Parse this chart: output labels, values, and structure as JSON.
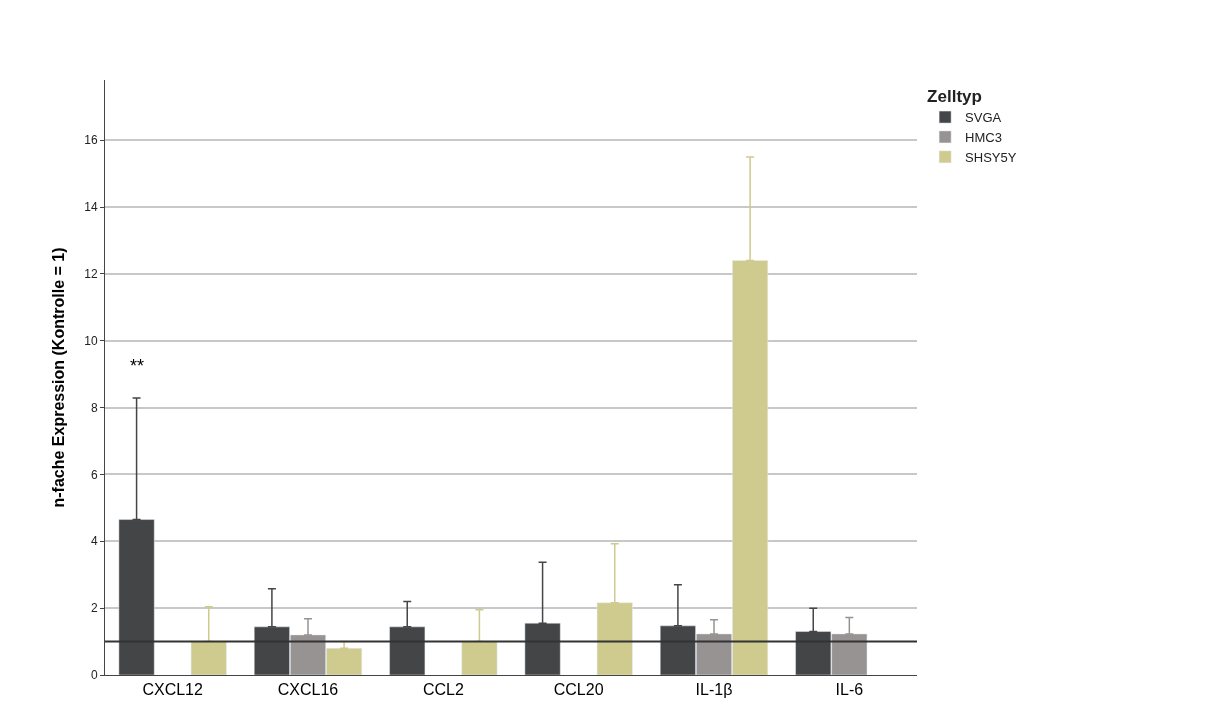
{
  "chart_data": {
    "type": "bar",
    "ylabel": "n-fache Expression (Kontrolle = 1)",
    "legend_title": "Zelltyp",
    "categories": [
      "CXCL12",
      "CXCL16",
      "CCL2",
      "CCL20",
      "IL-1β",
      "IL-6"
    ],
    "series": [
      {
        "name": "SVGA",
        "color": "#434546",
        "values": [
          4.65,
          1.44,
          1.44,
          1.55,
          1.47,
          1.3
        ],
        "errors": [
          [
            4.65,
            8.29
          ],
          [
            1.44,
            2.58
          ],
          [
            1.44,
            2.2
          ],
          [
            1.55,
            3.37
          ],
          [
            1.47,
            2.7
          ],
          [
            1.3,
            2.0
          ]
        ]
      },
      {
        "name": "HMC3",
        "color": "#979392",
        "values": [
          null,
          1.2,
          null,
          null,
          1.23,
          1.23
        ],
        "errors": [
          null,
          [
            1.2,
            1.68
          ],
          null,
          null,
          [
            1.23,
            1.65
          ],
          [
            1.23,
            1.72
          ]
        ]
      },
      {
        "name": "SHSY5Y",
        "color": "#cfca8e",
        "values": [
          1.0,
          0.8,
          1.0,
          2.16,
          12.4,
          null
        ],
        "errors": [
          [
            1.0,
            2.04
          ],
          [
            0.8,
            1.0
          ],
          [
            1.0,
            1.95
          ],
          [
            2.16,
            3.93
          ],
          [
            12.4,
            15.5
          ],
          null
        ]
      }
    ],
    "ylim": [
      0,
      17.8
    ],
    "yticks": [
      0,
      2,
      4,
      6,
      8,
      10,
      12,
      14,
      16
    ],
    "grid": "y",
    "legend": "top right",
    "ref_lines": [
      {
        "axis": "y",
        "value": 1,
        "color": "#333333"
      }
    ],
    "annotations": [
      "**"
    ]
  }
}
